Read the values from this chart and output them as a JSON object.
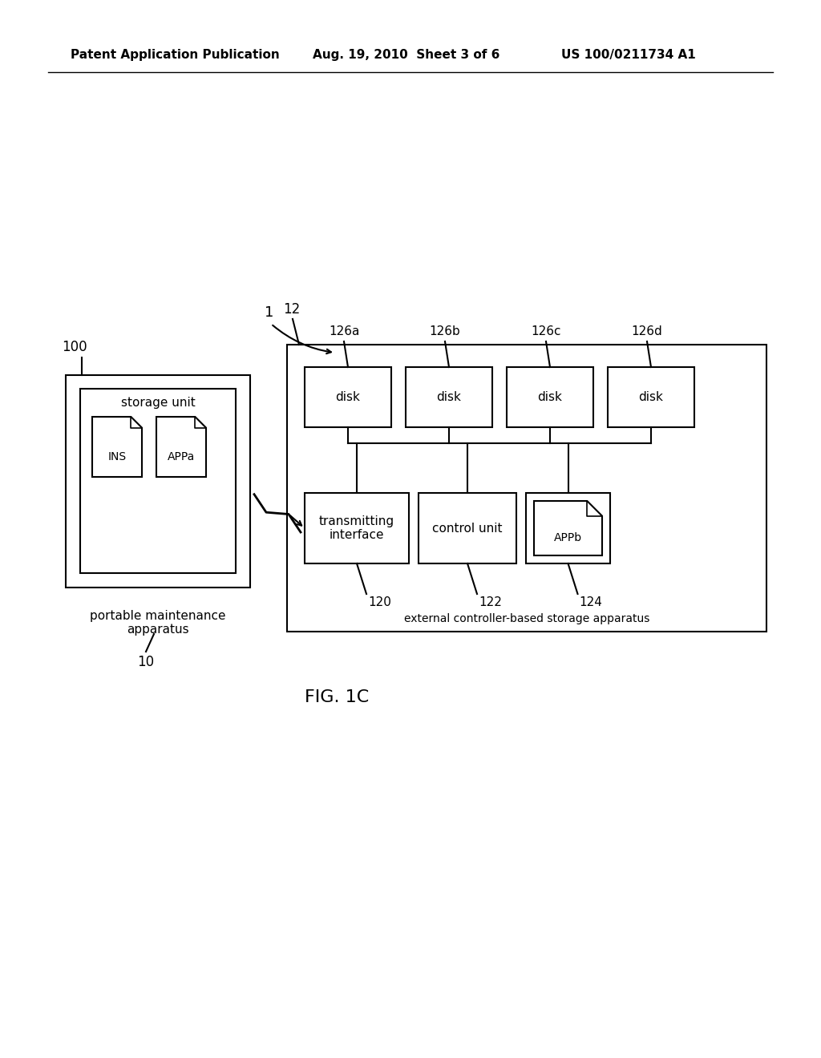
{
  "bg_color": "#ffffff",
  "header_left": "Patent Application Publication",
  "header_mid": "Aug. 19, 2010  Sheet 3 of 6",
  "header_right": "US 100/0211734 A1",
  "fig_label": "FIG. 1C",
  "label_1": "1",
  "label_10": "10",
  "label_100": "100",
  "label_12": "12",
  "label_126a": "126a",
  "label_126b": "126b",
  "label_126c": "126c",
  "label_126d": "126d",
  "label_120": "120",
  "label_122": "122",
  "label_124": "124",
  "portable_box_label": "portable maintenance\napparatus",
  "storage_unit_label": "storage unit",
  "ins_label": "INS",
  "appa_label": "APPa",
  "disk_label": "disk",
  "transmitting_label": "transmitting\ninterface",
  "control_unit_label": "control unit",
  "appb_label": "APPb",
  "external_label": "external controller-based storage apparatus",
  "line_color": "#000000",
  "text_color": "#000000",
  "lw": 1.5
}
